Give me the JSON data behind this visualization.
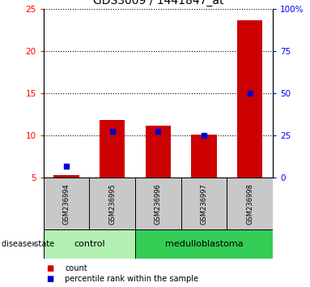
{
  "title": "GDS3009 / 1441847_at",
  "samples": [
    "GSM236994",
    "GSM236995",
    "GSM236996",
    "GSM236997",
    "GSM236998"
  ],
  "count_values": [
    5.3,
    11.8,
    11.2,
    10.1,
    23.6
  ],
  "percentile_values": [
    7.0,
    27.5,
    27.5,
    25.0,
    50.0
  ],
  "ylim_left": [
    5,
    25
  ],
  "ylim_right": [
    0,
    100
  ],
  "yticks_left": [
    5,
    10,
    15,
    20,
    25
  ],
  "yticks_right": [
    0,
    25,
    50,
    75,
    100
  ],
  "ytick_right_labels": [
    "0",
    "25",
    "50",
    "75",
    "100%"
  ],
  "group_control_color": "#b2f0b2",
  "group_medulloblastoma_color": "#33cc55",
  "bar_color": "#cc0000",
  "marker_color": "#0000cc",
  "label_box_color": "#c8c8c8",
  "disease_state_label": "disease state",
  "legend_count": "count",
  "legend_percentile": "percentile rank within the sample",
  "group_control_label": "control",
  "group_medulloblastoma_label": "medulloblastoma"
}
